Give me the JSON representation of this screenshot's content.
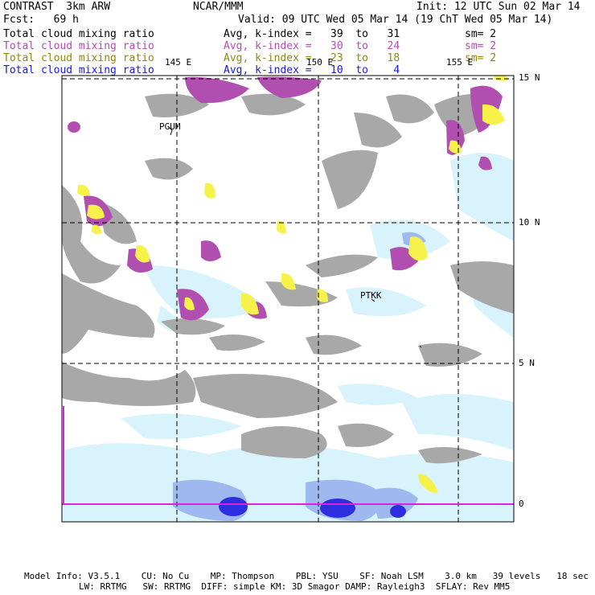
{
  "header": {
    "title": "CONTRAST  3km ARW",
    "center": "NCAR/MMM",
    "init": "Init: 12 UTC Sun 02 Mar 14",
    "fcst": "Fcst:   69 h",
    "valid": "Valid: 09 UTC Wed 05 Mar 14 (19 ChT Wed 05 Mar 14)"
  },
  "fields": [
    {
      "name": "Total cloud mixing ratio",
      "avg": "Avg, k-index =   39  to   31",
      "sm": "sm= 2",
      "color": "#000000"
    },
    {
      "name": "Total cloud mixing ratio",
      "avg": "Avg, k-index =   30  to   24",
      "sm": "sm= 2",
      "color": "#b04fb0"
    },
    {
      "name": "Total cloud mixing ratio",
      "avg": "Avg, k-index =   23  to   18",
      "sm": "sm= 2",
      "color": "#8a8a10"
    },
    {
      "name": "Total cloud mixing ratio",
      "avg": "Avg, k-index =   10  to    4",
      "sm": "",
      "color": "#1a1ae0"
    }
  ],
  "map": {
    "lon_labels": [
      "145 E",
      "150 E",
      "155 E"
    ],
    "lat_labels": [
      "15 N",
      "10 N",
      "5 N",
      "0"
    ],
    "stations": [
      "PGUM",
      "PTKK"
    ]
  },
  "footer": {
    "line1": "Model Info: V3.5.1    CU: No Cu    MP: Thompson    PBL: YSU    SF: Noah LSM    3.0 km   39 levels   18 sec",
    "line2": "LW: RRTMG   SW: RRTMG  DIFF: simple KM: 3D Smagor DAMP: Rayleigh3  SFLAY: Rev MM5"
  },
  "colors": {
    "gray_cloud": "#a8a8a8",
    "purple_cloud": "#b04fb0",
    "yellow_cloud": "#f7f24a",
    "light_blue": "#d8f3fb",
    "mid_blue": "#9fb8f0",
    "dark_blue": "#2e2ee0"
  }
}
